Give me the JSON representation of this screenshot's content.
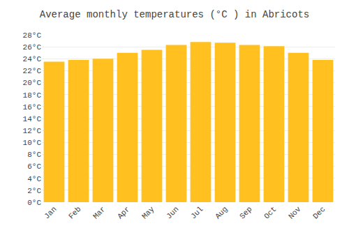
{
  "chart_data": {
    "type": "bar",
    "title": "Average monthly temperatures (°C ) in Abricots",
    "categories": [
      "Jan",
      "Feb",
      "Mar",
      "Apr",
      "May",
      "Jun",
      "Jul",
      "Aug",
      "Sep",
      "Oct",
      "Nov",
      "Dec"
    ],
    "values": [
      23.5,
      23.8,
      24.0,
      25.0,
      25.5,
      26.3,
      26.8,
      26.7,
      26.3,
      26.1,
      25.0,
      23.8
    ],
    "color": "#FFC020",
    "ylim": [
      0,
      28
    ],
    "yticks": [
      {
        "value": 0,
        "label": "0°C"
      },
      {
        "value": 2,
        "label": "2°C"
      },
      {
        "value": 4,
        "label": "4°C"
      },
      {
        "value": 6,
        "label": "6°C"
      },
      {
        "value": 8,
        "label": "8°C"
      },
      {
        "value": 10,
        "label": "10°C"
      },
      {
        "value": 12,
        "label": "12°C"
      },
      {
        "value": 14,
        "label": "14°C"
      },
      {
        "value": 16,
        "label": "16°C"
      },
      {
        "value": 18,
        "label": "18°C"
      },
      {
        "value": 20,
        "label": "20°C"
      },
      {
        "value": 22,
        "label": "22°C"
      },
      {
        "value": 24,
        "label": "24°C"
      },
      {
        "value": 26,
        "label": "26°C"
      },
      {
        "value": 28,
        "label": "28°C"
      }
    ],
    "grid": true
  }
}
